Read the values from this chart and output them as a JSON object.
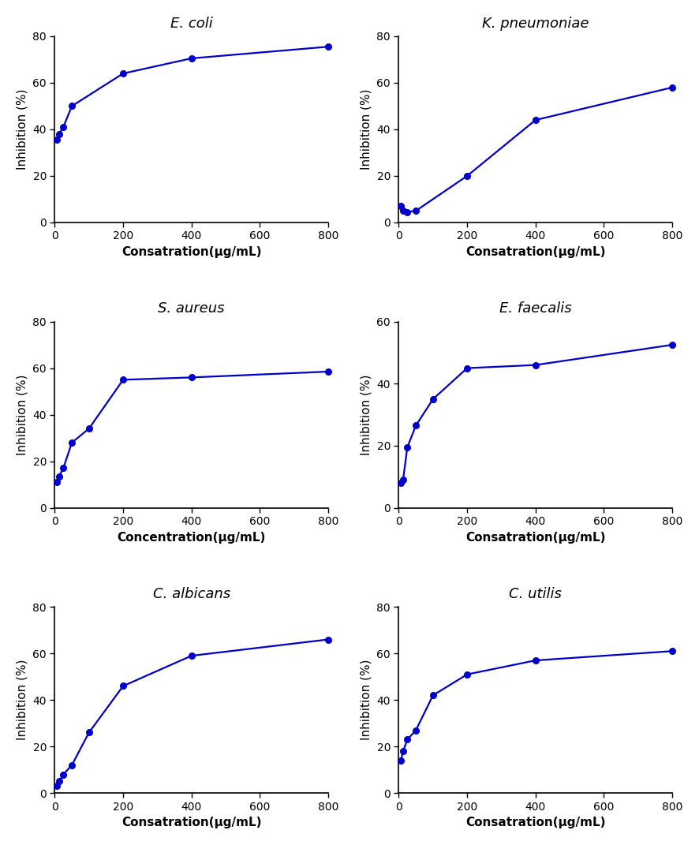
{
  "plots": [
    {
      "title": "E. coli",
      "xlabel": "Consatration(μg/mL)",
      "ylabel": "Inhibition (%)",
      "x": [
        6.25,
        12.5,
        25,
        50,
        200,
        400,
        800
      ],
      "y": [
        35.5,
        38,
        41,
        50,
        64,
        70.5,
        75.5
      ],
      "ylim": [
        0,
        80
      ],
      "yticks": [
        0,
        20,
        40,
        60,
        80
      ],
      "xlim": [
        0,
        800
      ],
      "xticks": [
        0,
        200,
        400,
        600,
        800
      ]
    },
    {
      "title": "K. pneumoniae",
      "xlabel": "Consatration(μg/mL)",
      "ylabel": "Inhibition (%)",
      "x": [
        6.25,
        12.5,
        25,
        50,
        200,
        400,
        800
      ],
      "y": [
        7,
        5,
        4.5,
        5,
        20,
        44,
        58
      ],
      "ylim": [
        0,
        80
      ],
      "yticks": [
        0,
        20,
        40,
        60,
        80
      ],
      "xlim": [
        0,
        800
      ],
      "xticks": [
        0,
        200,
        400,
        600,
        800
      ]
    },
    {
      "title": "S. aureus",
      "xlabel": "Concentration(μg/mL)",
      "ylabel": "Inhibition (%)",
      "x": [
        6.25,
        12.5,
        25,
        50,
        100,
        200,
        400,
        800
      ],
      "y": [
        11,
        13.5,
        17,
        28,
        34,
        55,
        56,
        58.5
      ],
      "ylim": [
        0,
        80
      ],
      "yticks": [
        0,
        20,
        40,
        60,
        80
      ],
      "xlim": [
        0,
        800
      ],
      "xticks": [
        0,
        200,
        400,
        600,
        800
      ]
    },
    {
      "title": "E. faecalis",
      "xlabel": "Consatration(μg/mL)",
      "ylabel": "Inhibition (%)",
      "x": [
        6.25,
        12.5,
        25,
        50,
        100,
        200,
        400,
        800
      ],
      "y": [
        8,
        9,
        19.5,
        26.5,
        35,
        45,
        46,
        52.5
      ],
      "ylim": [
        0,
        60
      ],
      "yticks": [
        0,
        20,
        40,
        60
      ],
      "xlim": [
        0,
        800
      ],
      "xticks": [
        0,
        200,
        400,
        600,
        800
      ]
    },
    {
      "title": "C. albicans",
      "xlabel": "Consatration(μg/mL)",
      "ylabel": "Inhibition (%)",
      "x": [
        6.25,
        12.5,
        25,
        50,
        100,
        200,
        400,
        800
      ],
      "y": [
        3,
        5,
        8,
        12,
        26,
        46,
        59,
        66
      ],
      "ylim": [
        0,
        80
      ],
      "yticks": [
        0,
        20,
        40,
        60,
        80
      ],
      "xlim": [
        0,
        800
      ],
      "xticks": [
        0,
        200,
        400,
        600,
        800
      ]
    },
    {
      "title": "C. utilis",
      "xlabel": "Consatration(μg/mL)",
      "ylabel": "Inhibition (%)",
      "x": [
        6.25,
        12.5,
        25,
        50,
        100,
        200,
        400,
        800
      ],
      "y": [
        14,
        18,
        23,
        27,
        42,
        51,
        57,
        61
      ],
      "ylim": [
        0,
        80
      ],
      "yticks": [
        0,
        20,
        40,
        60,
        80
      ],
      "xlim": [
        0,
        800
      ],
      "xticks": [
        0,
        200,
        400,
        600,
        800
      ]
    }
  ],
  "line_color": "#0000CC",
  "marker": "o",
  "marker_size": 5.5,
  "line_width": 1.6,
  "title_fontsize": 13,
  "label_fontsize": 11,
  "tick_fontsize": 10,
  "background_color": "#ffffff"
}
